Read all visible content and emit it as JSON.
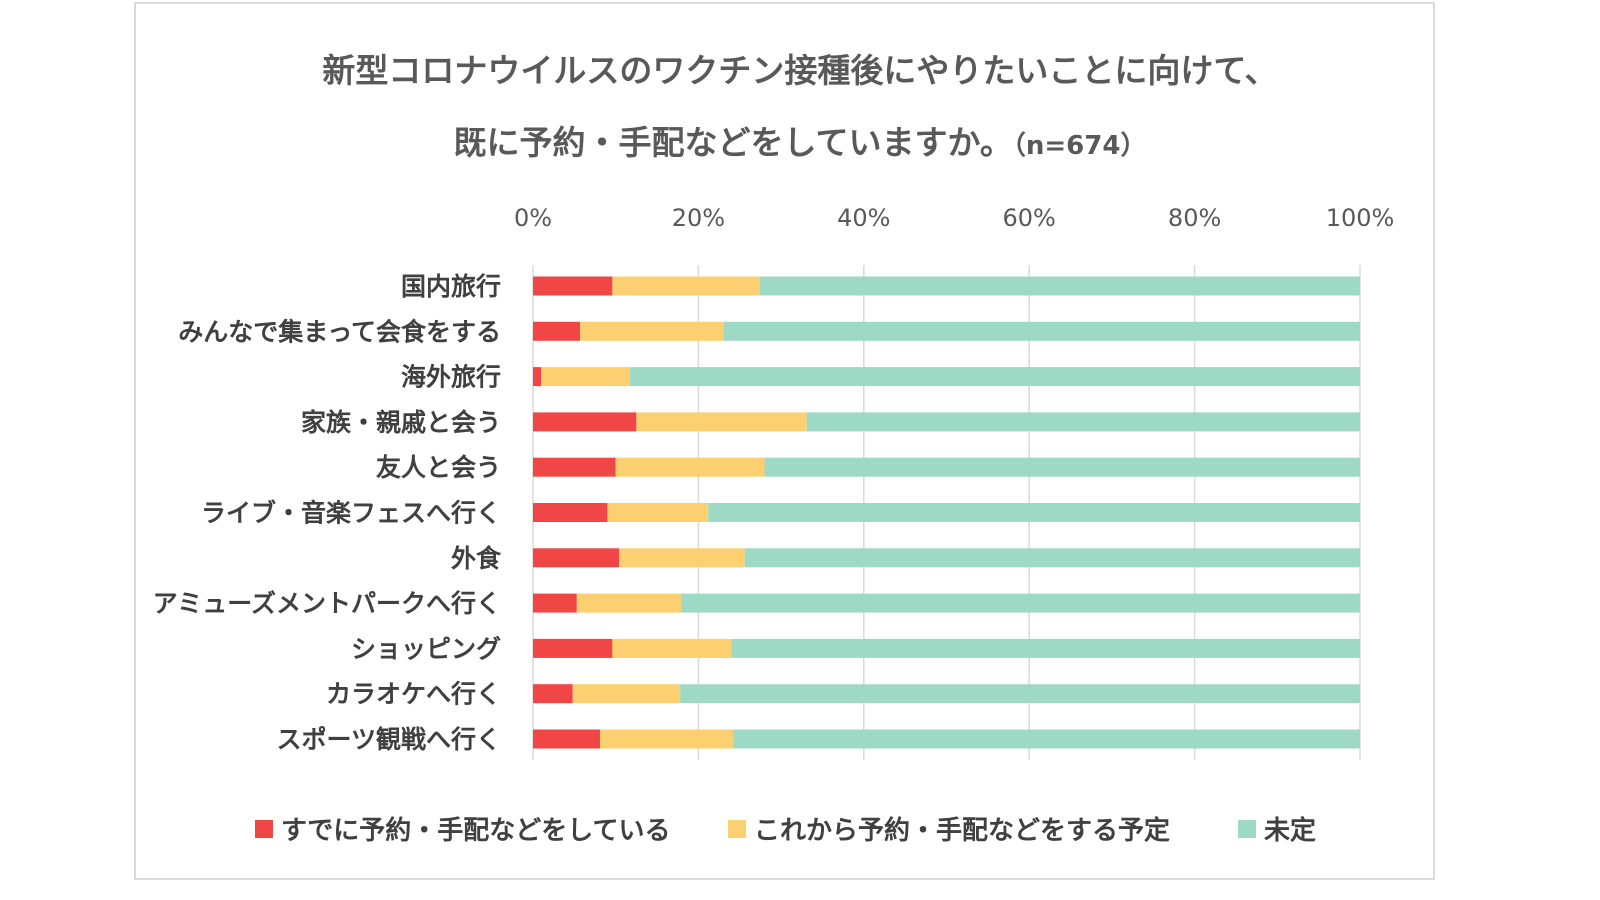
{
  "title_line1": "新型コロナウイルスのワクチン接種後にやりたいことに向けて、",
  "title_line2": "既に予約・手配などをしていますか。",
  "title_n": "（n=674）",
  "chart_data": {
    "type": "bar",
    "orientation": "horizontal",
    "stacked": true,
    "title": "新型コロナウイルスのワクチン接種後にやりたいことに向けて、既に予約・手配などをしていますか。（n=674）",
    "categories": [
      "国内旅行",
      "みんなで集まって会食をする",
      "海外旅行",
      "家族・親戚と会う",
      "友人と会う",
      "ライブ・音楽フェスへ行く",
      "外食",
      "アミューズメントパークへ行く",
      "ショッピング",
      "カラオケへ行く",
      "スポーツ観戦へ行く"
    ],
    "series": [
      {
        "name": "すでに予約・手配などをしている",
        "color": "#f04646",
        "values": [
          9.6,
          5.7,
          1.0,
          12.5,
          10.0,
          9.0,
          10.4,
          5.3,
          9.6,
          4.8,
          8.1
        ]
      },
      {
        "name": "これから予約・手配などをする予定",
        "color": "#fcd070",
        "values": [
          17.8,
          17.3,
          10.7,
          20.6,
          18.0,
          12.2,
          15.2,
          12.6,
          14.4,
          13.0,
          16.1
        ]
      },
      {
        "name": "未定",
        "color": "#9ed9c5",
        "values": [
          72.6,
          77.0,
          88.3,
          66.9,
          72.0,
          78.8,
          74.4,
          82.1,
          76.0,
          82.2,
          75.8
        ]
      }
    ],
    "xlim": [
      0,
      100
    ],
    "xticks": [
      "0%",
      "20%",
      "40%",
      "60%",
      "80%",
      "100%"
    ],
    "xlabel": "",
    "ylabel": "",
    "grid": true,
    "axis_position": "top",
    "legend_position": "bottom"
  }
}
